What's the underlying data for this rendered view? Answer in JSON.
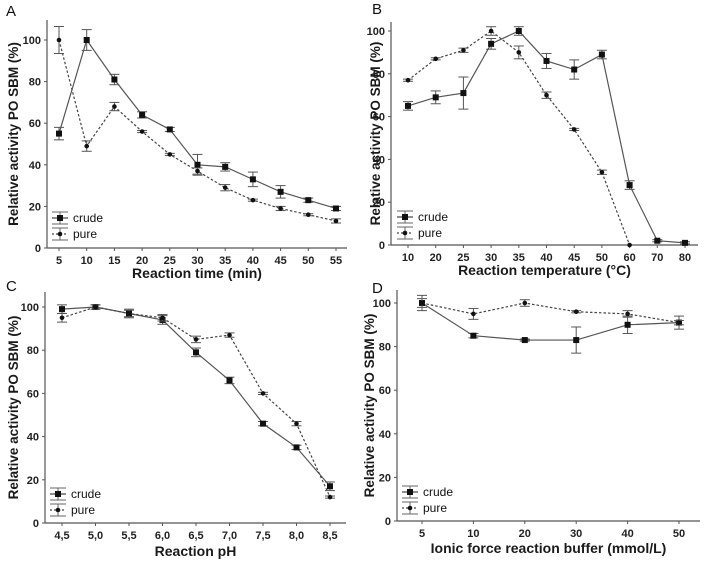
{
  "figure": {
    "legend_entries": [
      "crude",
      "pure"
    ]
  },
  "chart_data": [
    {
      "panel": "A",
      "type": "line",
      "title": "",
      "xlabel": "Reaction time (min)",
      "ylabel": "Relative activity PO SBM (%)",
      "categories": [
        "5",
        "10",
        "15",
        "20",
        "25",
        "30",
        "35",
        "40",
        "45",
        "50",
        "55"
      ],
      "ylim": [
        0,
        105
      ],
      "yticks": [
        0,
        20,
        40,
        60,
        80,
        100
      ],
      "legend": "bottom-left",
      "grid": false,
      "series": [
        {
          "name": "crude",
          "style": "solid",
          "marker": "square",
          "values": [
            55,
            100,
            81,
            64,
            57,
            40,
            39,
            33,
            27,
            23,
            19
          ],
          "errors": [
            3,
            5,
            2.5,
            1.5,
            1,
            5,
            2,
            3.5,
            3,
            1,
            1
          ]
        },
        {
          "name": "pure",
          "style": "dotted",
          "marker": "diamond",
          "values": [
            100,
            49,
            68,
            56,
            45,
            37,
            29,
            23,
            19,
            16,
            13
          ],
          "errors": [
            6.5,
            2.5,
            2,
            0.5,
            0.5,
            1.5,
            1.5,
            0.5,
            1,
            0.5,
            1
          ]
        }
      ]
    },
    {
      "panel": "B",
      "type": "line",
      "title": "",
      "xlabel": "Reaction temperature (°C)",
      "ylabel": "Relative activity PO SBM (%)",
      "categories": [
        "10",
        "20",
        "25",
        "30",
        "35",
        "40",
        "45",
        "50",
        "60",
        "70",
        "80"
      ],
      "ylim": [
        0,
        105
      ],
      "yticks": [
        0,
        20,
        40,
        60,
        80,
        100
      ],
      "legend": "bottom-left",
      "grid": false,
      "series": [
        {
          "name": "crude",
          "style": "solid",
          "marker": "square",
          "values": [
            65,
            69,
            71,
            94,
            100,
            86,
            82,
            89,
            28,
            2,
            1
          ],
          "errors": [
            2,
            3,
            7.5,
            2.5,
            2,
            3.5,
            4.5,
            2,
            2,
            0.5,
            0.5
          ]
        },
        {
          "name": "pure",
          "style": "dotted",
          "marker": "diamond",
          "values": [
            77,
            87,
            91,
            100,
            90,
            70,
            54,
            34,
            0,
            null,
            null
          ],
          "errors": [
            0.5,
            0.5,
            1,
            2,
            3,
            1.5,
            0.5,
            1,
            0,
            null,
            null
          ]
        }
      ]
    },
    {
      "panel": "C",
      "type": "line",
      "title": "",
      "xlabel": "Reaction pH",
      "ylabel": "Relative activity PO SBM (%)",
      "categories": [
        "4,5",
        "5,0",
        "5,5",
        "6,0",
        "6,5",
        "7,0",
        "7,5",
        "8,0",
        "8,5"
      ],
      "ylim": [
        0,
        105
      ],
      "yticks": [
        0,
        20,
        40,
        60,
        80,
        100
      ],
      "legend": "bottom-left",
      "grid": false,
      "series": [
        {
          "name": "crude",
          "style": "solid",
          "marker": "square",
          "values": [
            99,
            100,
            97,
            94,
            79,
            66,
            46,
            35,
            17
          ],
          "errors": [
            2,
            1,
            2,
            2,
            2,
            1.5,
            1,
            1,
            2
          ]
        },
        {
          "name": "pure",
          "style": "dotted",
          "marker": "diamond",
          "values": [
            95,
            100,
            97,
            95,
            85,
            87,
            60,
            46,
            12
          ],
          "errors": [
            2,
            1,
            1.5,
            1.5,
            1.5,
            1,
            0.5,
            1,
            0.5
          ]
        }
      ]
    },
    {
      "panel": "D",
      "type": "line",
      "title": "",
      "xlabel": "Ionic force reaction buffer (mmol/L)",
      "ylabel": "Relative activity PO SBM (%)",
      "categories": [
        "5",
        "10",
        "20",
        "30",
        "40",
        "50"
      ],
      "ylim": [
        0,
        105
      ],
      "yticks": [
        0,
        20,
        40,
        60,
        80,
        100
      ],
      "legend": "bottom-left",
      "grid": false,
      "series": [
        {
          "name": "crude",
          "style": "solid",
          "marker": "square",
          "values": [
            100,
            85,
            83,
            83,
            90,
            91
          ],
          "errors": [
            2,
            1,
            0.5,
            6,
            4,
            3
          ]
        },
        {
          "name": "pure",
          "style": "dotted",
          "marker": "diamond",
          "values": [
            100,
            95,
            100,
            96,
            95,
            91
          ],
          "errors": [
            3.5,
            2.5,
            1.5,
            0.5,
            1.5,
            1
          ]
        }
      ]
    }
  ]
}
